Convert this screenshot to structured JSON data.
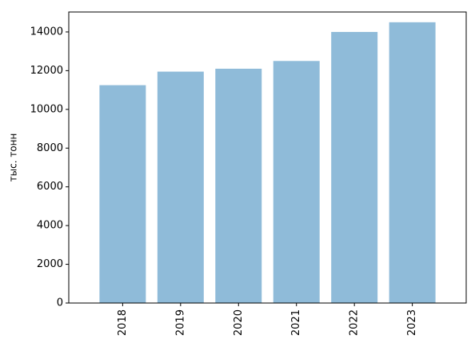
{
  "chart_data": {
    "type": "bar",
    "y_label": "тыс. тонн",
    "categories": [
      "2018",
      "2019",
      "2020",
      "2021",
      "2022",
      "2023"
    ],
    "values": [
      11250,
      11950,
      12100,
      12500,
      14000,
      14500
    ],
    "color": "#8fbbd9",
    "ylim": [
      0,
      15030
    ],
    "yticks": [
      0,
      2000,
      4000,
      6000,
      8000,
      10000,
      12000,
      14000
    ],
    "grid": false
  }
}
